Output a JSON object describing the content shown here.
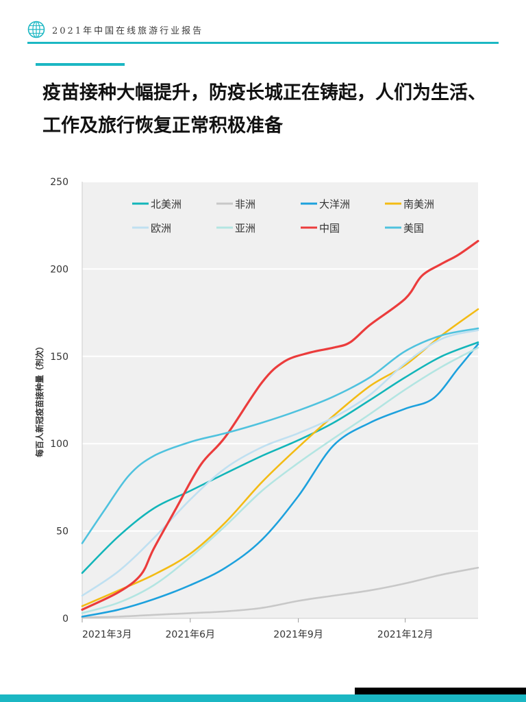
{
  "header": {
    "title": "2021年中国在线旅游行业报告",
    "logo_icon": "globe-icon"
  },
  "headline": "疫苗接种大幅提升，防疫长城正在铸起，人们为生活、工作及旅行恢复正常积极准备",
  "colors": {
    "accent": "#1bb7c3",
    "plot_background": "#f0f0f0"
  },
  "chart_data": {
    "type": "line",
    "ylabel": "每百人新冠疫苗接种量（剂次）",
    "xlabel": "",
    "ylim": [
      0,
      250
    ],
    "yticks": [
      0,
      50,
      100,
      150,
      200,
      250
    ],
    "xlim": [
      "2021-03-01",
      "2022-02-01"
    ],
    "xticks": [
      {
        "date": "2021-03-01",
        "label": "2021年3月"
      },
      {
        "date": "2021-06-01",
        "label": "2021年6月"
      },
      {
        "date": "2021-09-01",
        "label": "2021年9月"
      },
      {
        "date": "2021-12-01",
        "label": "2021年12月"
      }
    ],
    "grid": "horizontal",
    "legend_position": "top",
    "series": [
      {
        "name": "北美洲",
        "color": "#12b5b9",
        "points": [
          [
            "2021-03-01",
            26
          ],
          [
            "2021-04-01",
            47
          ],
          [
            "2021-05-01",
            63
          ],
          [
            "2021-06-01",
            73
          ],
          [
            "2021-07-01",
            83
          ],
          [
            "2021-08-01",
            93
          ],
          [
            "2021-09-01",
            102
          ],
          [
            "2021-10-01",
            112
          ],
          [
            "2021-11-01",
            125
          ],
          [
            "2021-12-01",
            138
          ],
          [
            "2022-01-01",
            150
          ],
          [
            "2022-02-01",
            158
          ]
        ]
      },
      {
        "name": "非洲",
        "color": "#c8c8c8",
        "points": [
          [
            "2021-03-01",
            0.5
          ],
          [
            "2021-04-01",
            1
          ],
          [
            "2021-05-01",
            2
          ],
          [
            "2021-06-01",
            3
          ],
          [
            "2021-07-01",
            4
          ],
          [
            "2021-08-01",
            6
          ],
          [
            "2021-09-01",
            10
          ],
          [
            "2021-10-01",
            13
          ],
          [
            "2021-11-01",
            16
          ],
          [
            "2021-12-01",
            20
          ],
          [
            "2022-01-01",
            25
          ],
          [
            "2022-02-01",
            29
          ]
        ]
      },
      {
        "name": "大洋洲",
        "color": "#1da1dd",
        "points": [
          [
            "2021-03-01",
            1
          ],
          [
            "2021-04-01",
            5
          ],
          [
            "2021-05-01",
            11
          ],
          [
            "2021-06-01",
            19
          ],
          [
            "2021-07-01",
            29
          ],
          [
            "2021-08-01",
            45
          ],
          [
            "2021-09-01",
            70
          ],
          [
            "2021-10-01",
            99
          ],
          [
            "2021-11-01",
            112
          ],
          [
            "2021-12-01",
            120
          ],
          [
            "2021-12-25",
            126
          ],
          [
            "2022-01-15",
            143
          ],
          [
            "2022-02-01",
            157
          ]
        ]
      },
      {
        "name": "南美洲",
        "color": "#f3bb14",
        "points": [
          [
            "2021-03-01",
            7
          ],
          [
            "2021-04-01",
            16
          ],
          [
            "2021-05-01",
            25
          ],
          [
            "2021-06-01",
            37
          ],
          [
            "2021-07-01",
            55
          ],
          [
            "2021-08-01",
            78
          ],
          [
            "2021-09-01",
            98
          ],
          [
            "2021-10-01",
            116
          ],
          [
            "2021-11-01",
            133
          ],
          [
            "2021-12-01",
            145
          ],
          [
            "2022-01-01",
            162
          ],
          [
            "2022-02-01",
            177
          ]
        ]
      },
      {
        "name": "欧洲",
        "color": "#bfe0f1",
        "points": [
          [
            "2021-03-01",
            13
          ],
          [
            "2021-04-01",
            27
          ],
          [
            "2021-05-01",
            46
          ],
          [
            "2021-06-01",
            68
          ],
          [
            "2021-07-01",
            86
          ],
          [
            "2021-08-01",
            98
          ],
          [
            "2021-09-01",
            106
          ],
          [
            "2021-10-01",
            115
          ],
          [
            "2021-11-01",
            128
          ],
          [
            "2021-12-01",
            146
          ],
          [
            "2022-01-01",
            160
          ],
          [
            "2022-02-01",
            165
          ]
        ]
      },
      {
        "name": "亚洲",
        "color": "#b3e5e2",
        "points": [
          [
            "2021-03-01",
            3
          ],
          [
            "2021-04-01",
            9
          ],
          [
            "2021-05-01",
            19
          ],
          [
            "2021-06-01",
            35
          ],
          [
            "2021-07-01",
            53
          ],
          [
            "2021-08-01",
            73
          ],
          [
            "2021-09-01",
            89
          ],
          [
            "2021-10-01",
            103
          ],
          [
            "2021-11-01",
            117
          ],
          [
            "2021-12-01",
            131
          ],
          [
            "2022-01-01",
            144
          ],
          [
            "2022-02-01",
            155
          ]
        ]
      },
      {
        "name": "中国",
        "color": "#eb3c3c",
        "points": [
          [
            "2021-03-01",
            5
          ],
          [
            "2021-04-01",
            15
          ],
          [
            "2021-04-20",
            25
          ],
          [
            "2021-05-01",
            40
          ],
          [
            "2021-05-20",
            63
          ],
          [
            "2021-06-10",
            88
          ],
          [
            "2021-07-01",
            104
          ],
          [
            "2021-08-01",
            135
          ],
          [
            "2021-08-20",
            147
          ],
          [
            "2021-09-10",
            152
          ],
          [
            "2021-10-01",
            155
          ],
          [
            "2021-10-15",
            158
          ],
          [
            "2021-11-01",
            168
          ],
          [
            "2021-12-01",
            183
          ],
          [
            "2021-12-15",
            196
          ],
          [
            "2022-01-01",
            203
          ],
          [
            "2022-01-15",
            208
          ],
          [
            "2022-02-01",
            216
          ]
        ]
      },
      {
        "name": "美国",
        "color": "#4fc2de",
        "points": [
          [
            "2021-03-01",
            43
          ],
          [
            "2021-03-20",
            62
          ],
          [
            "2021-04-10",
            82
          ],
          [
            "2021-05-01",
            93
          ],
          [
            "2021-06-01",
            101
          ],
          [
            "2021-07-01",
            106
          ],
          [
            "2021-08-01",
            112
          ],
          [
            "2021-09-01",
            119
          ],
          [
            "2021-10-01",
            127
          ],
          [
            "2021-11-01",
            138
          ],
          [
            "2021-12-01",
            153
          ],
          [
            "2022-01-01",
            162
          ],
          [
            "2022-02-01",
            166
          ]
        ]
      }
    ]
  }
}
